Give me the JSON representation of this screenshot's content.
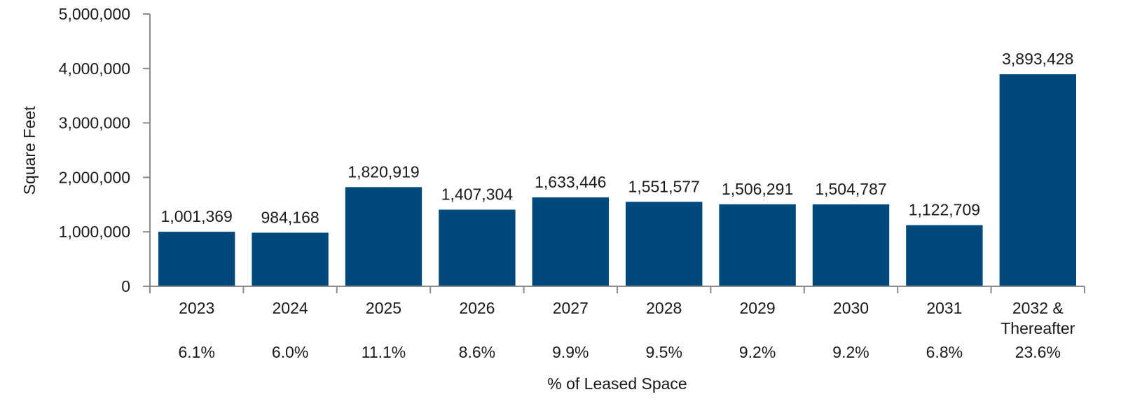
{
  "chart_data": {
    "type": "bar",
    "categories": [
      "2023",
      "2024",
      "2025",
      "2026",
      "2027",
      "2028",
      "2029",
      "2030",
      "2031",
      "2032 & Thereafter"
    ],
    "category_lines": [
      [
        "2023"
      ],
      [
        "2024"
      ],
      [
        "2025"
      ],
      [
        "2026"
      ],
      [
        "2027"
      ],
      [
        "2028"
      ],
      [
        "2029"
      ],
      [
        "2030"
      ],
      [
        "2031"
      ],
      [
        "2032 &",
        "Thereafter"
      ]
    ],
    "values": [
      1001369,
      984168,
      1820919,
      1407304,
      1633446,
      1551577,
      1506291,
      1504787,
      1122709,
      3893428
    ],
    "value_labels": [
      "1,001,369",
      "984,168",
      "1,820,919",
      "1,407,304",
      "1,633,446",
      "1,551,577",
      "1,506,291",
      "1,504,787",
      "1,122,709",
      "3,893,428"
    ],
    "percent_labels": [
      "6.1%",
      "6.0%",
      "11.1%",
      "8.6%",
      "9.9%",
      "9.5%",
      "9.2%",
      "9.2%",
      "6.8%",
      "23.6%"
    ],
    "title": "",
    "xlabel": "% of Leased Space",
    "ylabel": "Square Feet",
    "ylim": [
      0,
      5000000
    ],
    "yticks": [
      0,
      1000000,
      2000000,
      3000000,
      4000000,
      5000000
    ],
    "ytick_labels": [
      "0",
      "1,000,000",
      "2,000,000",
      "3,000,000",
      "4,000,000",
      "5,000,000"
    ],
    "grid": false,
    "legend": "none",
    "bar_color": "#00497c",
    "axis_color": "#8c8c8c"
  }
}
